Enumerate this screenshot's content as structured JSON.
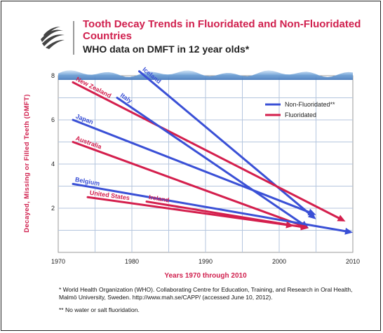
{
  "header": {
    "title": "Tooth Decay Trends in Fluoridated and Non-Fluoridated Countries",
    "subtitle": "WHO data on DMFT in 12 year olds*"
  },
  "footnotes": [
    "* World Health Organization (WHO). Collaborating Centre for Education, Training, and Research in Oral Health, Malmö University, Sweden. http://www.mah.se/CAPP/ (accessed June 10, 2012).",
    "** No water or salt fluoridation."
  ],
  "colors": {
    "non_fluoridated": "#3a50d6",
    "fluoridated": "#d41f4d",
    "axis_label": "#d0204e",
    "grid": "#b4c6de",
    "water": "#5b8fcf"
  },
  "chart_data": {
    "type": "line",
    "title": "Tooth Decay Trends in Fluoridated and Non-Fluoridated Countries",
    "subtitle": "WHO data on DMFT in 12 year olds*",
    "xlabel": "Years 1970 through 2010",
    "ylabel": "Decayed, Missing or Filled Teeth (DMFT)",
    "xlim": [
      1970,
      2010
    ],
    "ylim": [
      0,
      8
    ],
    "xticks": [
      1970,
      1980,
      1990,
      2000,
      2010
    ],
    "yticks": [
      2,
      4,
      6,
      8
    ],
    "grid": true,
    "legend": {
      "placement": "top-right",
      "entries": [
        {
          "label": "Non-Fluoridated**",
          "group": "non_fluoridated"
        },
        {
          "label": "Fluoridated",
          "group": "fluoridated"
        }
      ]
    },
    "series": [
      {
        "name": "Iceland",
        "group": "non_fluoridated",
        "x": [
          1981,
          2005
        ],
        "y": [
          8.2,
          1.5
        ]
      },
      {
        "name": "New Zealand",
        "group": "fluoridated",
        "x": [
          1972,
          2009
        ],
        "y": [
          7.7,
          1.4
        ]
      },
      {
        "name": "Italy",
        "group": "non_fluoridated",
        "x": [
          1978,
          2004
        ],
        "y": [
          7.0,
          1.1
        ]
      },
      {
        "name": "Japan",
        "group": "non_fluoridated",
        "x": [
          1972,
          2005
        ],
        "y": [
          6.0,
          1.7
        ]
      },
      {
        "name": "Australia",
        "group": "fluoridated",
        "x": [
          1972,
          2004
        ],
        "y": [
          5.0,
          1.1
        ]
      },
      {
        "name": "Ireland",
        "group": "fluoridated",
        "x": [
          1982,
          2004
        ],
        "y": [
          2.3,
          1.1
        ]
      },
      {
        "name": "Belgium",
        "group": "non_fluoridated",
        "x": [
          1972,
          2010
        ],
        "y": [
          3.1,
          0.9
        ]
      },
      {
        "name": "United States",
        "group": "fluoridated",
        "x": [
          1974,
          2002
        ],
        "y": [
          2.5,
          1.2
        ]
      }
    ]
  }
}
